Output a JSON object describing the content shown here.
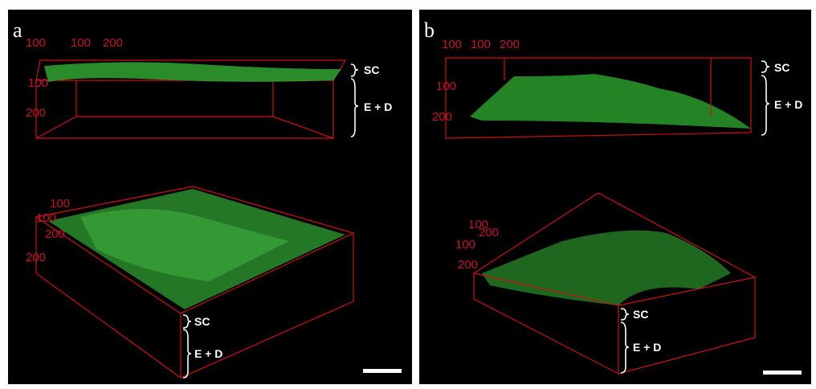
{
  "panels": [
    {
      "label": "a",
      "top_view": {
        "axis_labels": [
          "100",
          "100",
          "200",
          "100",
          "200"
        ],
        "annotations": [
          "SC",
          "E + D"
        ]
      },
      "bottom_view": {
        "axis_labels": [
          "100",
          "100",
          "200",
          "200"
        ],
        "annotations": [
          "SC",
          "E + D"
        ]
      }
    },
    {
      "label": "b",
      "top_view": {
        "axis_labels": [
          "100",
          "100",
          "200",
          "100",
          "200"
        ],
        "annotations": [
          "SC",
          "E + D"
        ]
      },
      "bottom_view": {
        "axis_labels": [
          "100",
          "200",
          "100",
          "200"
        ],
        "annotations": [
          "SC",
          "E + D"
        ]
      }
    }
  ]
}
